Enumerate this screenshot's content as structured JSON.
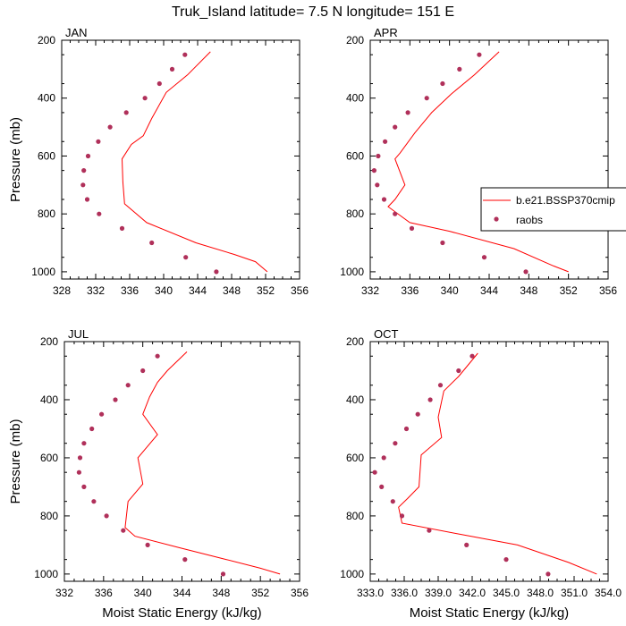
{
  "title": "Truk_Island  latitude= 7.5 N longitude= 151 E",
  "colors": {
    "model": "#ff0000",
    "obs": "#b0305a",
    "axis": "#000000"
  },
  "legend": {
    "model_label": "b.e21.BSSP370cmip",
    "obs_label": "raobs"
  },
  "chart_data": [
    {
      "type": "line",
      "panel_label": "JAN",
      "xlabel": "",
      "ylabel": "Pressure (mb)",
      "xlim": [
        328,
        356
      ],
      "ylim": [
        1025,
        200
      ],
      "xticks": [
        328,
        332,
        336,
        340,
        344,
        348,
        352,
        356
      ],
      "xtick_labels": [
        "328",
        "332",
        "336",
        "340",
        "344",
        "348",
        "352",
        "356"
      ],
      "yticks": [
        200,
        400,
        600,
        800,
        1000
      ],
      "ytick_labels": [
        "200",
        "400",
        "600",
        "800",
        "1000"
      ],
      "series": [
        {
          "kind": "line",
          "points": [
            [
              345.5,
              240
            ],
            [
              342.8,
              320
            ],
            [
              340.3,
              380
            ],
            [
              338.6,
              470
            ],
            [
              337.6,
              530
            ],
            [
              336.2,
              560
            ],
            [
              335.1,
              610
            ],
            [
              335.2,
              690
            ],
            [
              335.4,
              765
            ],
            [
              338.0,
              830
            ],
            [
              343.8,
              900
            ],
            [
              348.3,
              940
            ],
            [
              350.8,
              965
            ],
            [
              352.2,
              1000
            ]
          ]
        },
        {
          "kind": "points",
          "points": [
            [
              342.5,
              250
            ],
            [
              341.0,
              300
            ],
            [
              339.5,
              350
            ],
            [
              337.8,
              400
            ],
            [
              335.6,
              450
            ],
            [
              333.7,
              500
            ],
            [
              332.3,
              550
            ],
            [
              331.1,
              600
            ],
            [
              330.6,
              650
            ],
            [
              330.5,
              700
            ],
            [
              331.0,
              750
            ],
            [
              332.4,
              800
            ],
            [
              335.1,
              850
            ],
            [
              338.6,
              900
            ],
            [
              342.6,
              950
            ],
            [
              346.2,
              1000
            ]
          ]
        }
      ]
    },
    {
      "type": "line",
      "panel_label": "APR",
      "xlabel": "",
      "ylabel": "",
      "xlim": [
        332,
        356
      ],
      "ylim": [
        1025,
        200
      ],
      "xticks": [
        332,
        336,
        340,
        344,
        348,
        352,
        356
      ],
      "xtick_labels": [
        "332",
        "336",
        "340",
        "344",
        "348",
        "352",
        "356"
      ],
      "yticks": [
        200,
        400,
        600,
        800,
        1000
      ],
      "ytick_labels": [
        "200",
        "400",
        "600",
        "800",
        "1000"
      ],
      "series": [
        {
          "kind": "line",
          "points": [
            [
              345.0,
              240
            ],
            [
              342.5,
              320
            ],
            [
              340.2,
              385
            ],
            [
              338.2,
              450
            ],
            [
              336.5,
              520
            ],
            [
              335.0,
              590
            ],
            [
              334.5,
              610
            ],
            [
              335.5,
              700
            ],
            [
              334.5,
              750
            ],
            [
              333.8,
              775
            ],
            [
              336.0,
              830
            ],
            [
              340.0,
              860
            ],
            [
              346.5,
              920
            ],
            [
              350.5,
              980
            ],
            [
              352.0,
              1000
            ]
          ]
        },
        {
          "kind": "points",
          "points": [
            [
              343.0,
              250
            ],
            [
              341.0,
              300
            ],
            [
              339.3,
              350
            ],
            [
              337.7,
              400
            ],
            [
              335.8,
              450
            ],
            [
              334.5,
              500
            ],
            [
              333.5,
              550
            ],
            [
              332.8,
              600
            ],
            [
              332.4,
              650
            ],
            [
              332.7,
              700
            ],
            [
              333.4,
              750
            ],
            [
              334.5,
              800
            ],
            [
              336.2,
              850
            ],
            [
              339.3,
              900
            ],
            [
              343.5,
              950
            ],
            [
              347.7,
              1000
            ]
          ]
        }
      ]
    },
    {
      "type": "line",
      "panel_label": "JUL",
      "xlabel": "Moist Static Energy (kJ/kg)",
      "ylabel": "Pressure (mb)",
      "xlim": [
        332,
        356
      ],
      "ylim": [
        1025,
        200
      ],
      "xticks": [
        332,
        336,
        340,
        344,
        348,
        352,
        356
      ],
      "xtick_labels": [
        "332",
        "336",
        "340",
        "344",
        "348",
        "352",
        "356"
      ],
      "yticks": [
        200,
        400,
        600,
        800,
        1000
      ],
      "ytick_labels": [
        "200",
        "400",
        "600",
        "800",
        "1000"
      ],
      "series": [
        {
          "kind": "line",
          "points": [
            [
              344.5,
              235
            ],
            [
              342.5,
              300
            ],
            [
              341.5,
              340
            ],
            [
              340.7,
              390
            ],
            [
              340.0,
              450
            ],
            [
              341.5,
              520
            ],
            [
              339.5,
              600
            ],
            [
              340.0,
              690
            ],
            [
              338.5,
              750
            ],
            [
              338.2,
              840
            ],
            [
              339.2,
              870
            ],
            [
              343.8,
              910
            ],
            [
              348.5,
              950
            ],
            [
              352.0,
              980
            ],
            [
              354.0,
              1000
            ]
          ]
        },
        {
          "kind": "points",
          "points": [
            [
              341.5,
              250
            ],
            [
              340.0,
              300
            ],
            [
              338.5,
              350
            ],
            [
              337.2,
              400
            ],
            [
              335.8,
              450
            ],
            [
              334.8,
              500
            ],
            [
              334.0,
              550
            ],
            [
              333.6,
              600
            ],
            [
              333.5,
              650
            ],
            [
              334.0,
              700
            ],
            [
              335.0,
              750
            ],
            [
              336.3,
              800
            ],
            [
              338.0,
              850
            ],
            [
              340.5,
              900
            ],
            [
              344.3,
              950
            ],
            [
              348.2,
              1000
            ]
          ]
        }
      ]
    },
    {
      "type": "line",
      "panel_label": "OCT",
      "xlabel": "Moist Static Energy (kJ/kg)",
      "ylabel": "",
      "xlim": [
        333,
        354
      ],
      "ylim": [
        1025,
        200
      ],
      "xticks": [
        333,
        336,
        339,
        342,
        345,
        348,
        351,
        354
      ],
      "xtick_labels": [
        "333.0",
        "336.0",
        "339.0",
        "342.0",
        "345.0",
        "348.0",
        "351.0",
        "354.0"
      ],
      "yticks": [
        200,
        400,
        600,
        800,
        1000
      ],
      "ytick_labels": [
        "200",
        "400",
        "600",
        "800",
        "1000"
      ],
      "series": [
        {
          "kind": "line",
          "points": [
            [
              342.5,
              240
            ],
            [
              340.8,
              320
            ],
            [
              339.5,
              370
            ],
            [
              339.0,
              460
            ],
            [
              339.3,
              530
            ],
            [
              337.5,
              590
            ],
            [
              337.3,
              700
            ],
            [
              336.3,
              740
            ],
            [
              335.5,
              770
            ],
            [
              335.8,
              825
            ],
            [
              340.5,
              860
            ],
            [
              346.0,
              900
            ],
            [
              350.5,
              960
            ],
            [
              353.0,
              1000
            ]
          ]
        },
        {
          "kind": "points",
          "points": [
            [
              342.0,
              250
            ],
            [
              340.8,
              300
            ],
            [
              339.2,
              350
            ],
            [
              338.3,
              400
            ],
            [
              337.2,
              450
            ],
            [
              336.2,
              500
            ],
            [
              335.2,
              550
            ],
            [
              334.2,
              600
            ],
            [
              333.4,
              650
            ],
            [
              334.0,
              700
            ],
            [
              335.0,
              750
            ],
            [
              335.8,
              800
            ],
            [
              338.2,
              850
            ],
            [
              341.5,
              900
            ],
            [
              345.0,
              950
            ],
            [
              348.7,
              1000
            ]
          ]
        }
      ]
    }
  ]
}
